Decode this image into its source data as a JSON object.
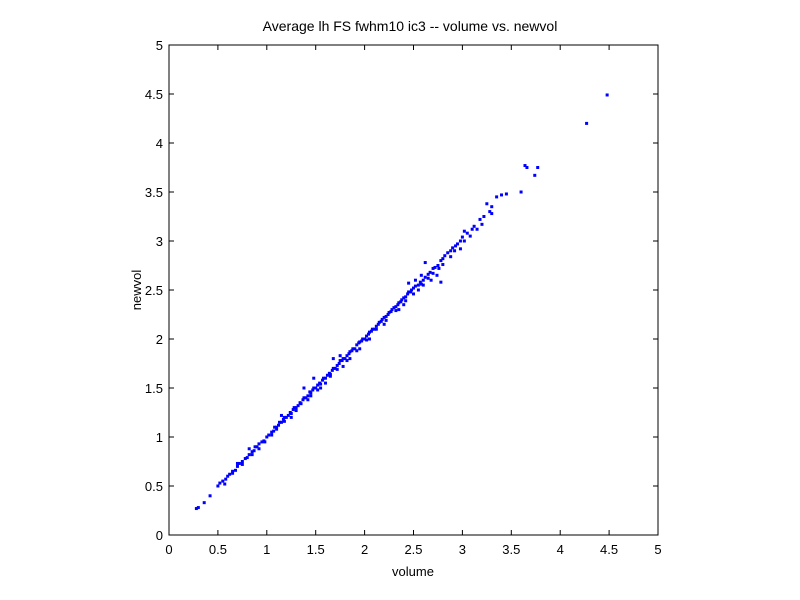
{
  "chart_data": {
    "type": "scatter",
    "title": "Average lh FS fwhm10 ic3 -- volume vs. newvol",
    "xlabel": "volume",
    "ylabel": "newvol",
    "xlim": [
      0,
      5
    ],
    "ylim": [
      0,
      5
    ],
    "xticks": [
      "0",
      "0.5",
      "1",
      "1.5",
      "2",
      "2.5",
      "3",
      "3.5",
      "4",
      "4.5",
      "5"
    ],
    "yticks": [
      "0",
      "0.5",
      "1",
      "1.5",
      "2",
      "2.5",
      "3",
      "3.5",
      "4",
      "4.5",
      "5"
    ],
    "grid": false,
    "marker_color": "#0000ff",
    "points": [
      [
        0.28,
        0.27
      ],
      [
        0.3,
        0.28
      ],
      [
        0.36,
        0.33
      ],
      [
        0.42,
        0.4
      ],
      [
        0.5,
        0.5
      ],
      [
        0.52,
        0.53
      ],
      [
        0.55,
        0.55
      ],
      [
        0.57,
        0.52
      ],
      [
        0.6,
        0.6
      ],
      [
        0.62,
        0.62
      ],
      [
        0.65,
        0.65
      ],
      [
        0.68,
        0.66
      ],
      [
        0.7,
        0.7
      ],
      [
        0.72,
        0.73
      ],
      [
        0.75,
        0.75
      ],
      [
        0.78,
        0.78
      ],
      [
        0.8,
        0.79
      ],
      [
        0.82,
        0.82
      ],
      [
        0.85,
        0.85
      ],
      [
        0.87,
        0.86
      ],
      [
        0.88,
        0.9
      ],
      [
        0.9,
        0.9
      ],
      [
        0.92,
        0.93
      ],
      [
        0.95,
        0.95
      ],
      [
        0.97,
        0.96
      ],
      [
        1.0,
        1.0
      ],
      [
        1.02,
        1.02
      ],
      [
        1.05,
        1.05
      ],
      [
        1.07,
        1.06
      ],
      [
        1.08,
        1.1
      ],
      [
        1.1,
        1.1
      ],
      [
        1.12,
        1.12
      ],
      [
        1.13,
        1.15
      ],
      [
        1.15,
        1.15
      ],
      [
        1.17,
        1.18
      ],
      [
        1.18,
        1.2
      ],
      [
        1.2,
        1.2
      ],
      [
        1.22,
        1.22
      ],
      [
        1.24,
        1.25
      ],
      [
        1.25,
        1.24
      ],
      [
        1.27,
        1.28
      ],
      [
        1.28,
        1.3
      ],
      [
        1.3,
        1.3
      ],
      [
        1.32,
        1.32
      ],
      [
        1.34,
        1.35
      ],
      [
        1.35,
        1.34
      ],
      [
        1.37,
        1.38
      ],
      [
        1.38,
        1.4
      ],
      [
        1.4,
        1.4
      ],
      [
        1.42,
        1.42
      ],
      [
        1.44,
        1.46
      ],
      [
        1.45,
        1.45
      ],
      [
        1.47,
        1.48
      ],
      [
        1.48,
        1.5
      ],
      [
        1.5,
        1.5
      ],
      [
        1.52,
        1.53
      ],
      [
        1.54,
        1.55
      ],
      [
        1.55,
        1.54
      ],
      [
        1.57,
        1.58
      ],
      [
        1.58,
        1.6
      ],
      [
        1.6,
        1.6
      ],
      [
        1.62,
        1.63
      ],
      [
        1.64,
        1.65
      ],
      [
        1.65,
        1.64
      ],
      [
        1.67,
        1.68
      ],
      [
        1.68,
        1.7
      ],
      [
        1.7,
        1.7
      ],
      [
        1.72,
        1.73
      ],
      [
        1.74,
        1.75
      ],
      [
        1.75,
        1.78
      ],
      [
        1.77,
        1.78
      ],
      [
        1.78,
        1.8
      ],
      [
        1.8,
        1.8
      ],
      [
        1.82,
        1.83
      ],
      [
        1.84,
        1.85
      ],
      [
        1.85,
        1.87
      ],
      [
        1.87,
        1.88
      ],
      [
        1.88,
        1.9
      ],
      [
        1.9,
        1.9
      ],
      [
        1.92,
        1.94
      ],
      [
        1.94,
        1.96
      ],
      [
        1.95,
        1.97
      ],
      [
        1.97,
        1.98
      ],
      [
        1.98,
        2.0
      ],
      [
        2.0,
        2.0
      ],
      [
        2.02,
        2.03
      ],
      [
        2.04,
        2.05
      ],
      [
        2.05,
        2.07
      ],
      [
        2.07,
        2.08
      ],
      [
        2.08,
        2.1
      ],
      [
        2.1,
        2.1
      ],
      [
        2.12,
        2.13
      ],
      [
        2.14,
        2.15
      ],
      [
        2.15,
        2.17
      ],
      [
        2.17,
        2.18
      ],
      [
        2.18,
        2.2
      ],
      [
        2.2,
        2.22
      ],
      [
        2.22,
        2.23
      ],
      [
        2.24,
        2.25
      ],
      [
        2.25,
        2.27
      ],
      [
        2.27,
        2.28
      ],
      [
        2.28,
        2.3
      ],
      [
        2.3,
        2.32
      ],
      [
        2.32,
        2.33
      ],
      [
        2.34,
        2.35
      ],
      [
        2.35,
        2.37
      ],
      [
        2.37,
        2.38
      ],
      [
        2.38,
        2.4
      ],
      [
        2.4,
        2.42
      ],
      [
        2.42,
        2.43
      ],
      [
        2.44,
        2.46
      ],
      [
        2.45,
        2.48
      ],
      [
        2.47,
        2.48
      ],
      [
        2.48,
        2.5
      ],
      [
        2.5,
        2.52
      ],
      [
        2.52,
        2.54
      ],
      [
        2.55,
        2.55
      ],
      [
        2.57,
        2.58
      ],
      [
        2.6,
        2.6
      ],
      [
        2.62,
        2.63
      ],
      [
        2.65,
        2.66
      ],
      [
        2.67,
        2.68
      ],
      [
        2.7,
        2.72
      ],
      [
        2.72,
        2.73
      ],
      [
        2.75,
        2.75
      ],
      [
        2.78,
        2.8
      ],
      [
        2.8,
        2.82
      ],
      [
        2.82,
        2.85
      ],
      [
        2.85,
        2.88
      ],
      [
        2.88,
        2.9
      ],
      [
        2.9,
        2.93
      ],
      [
        2.93,
        2.95
      ],
      [
        2.95,
        2.97
      ],
      [
        2.98,
        3.0
      ],
      [
        3.0,
        3.04
      ],
      [
        3.05,
        3.08
      ],
      [
        3.1,
        3.12
      ],
      [
        3.12,
        3.15
      ],
      [
        3.18,
        3.22
      ],
      [
        3.22,
        3.25
      ],
      [
        3.25,
        3.38
      ],
      [
        3.28,
        3.3
      ],
      [
        3.3,
        3.35
      ],
      [
        3.35,
        3.45
      ],
      [
        3.4,
        3.47
      ],
      [
        3.45,
        3.48
      ],
      [
        3.6,
        3.5
      ],
      [
        3.64,
        3.77
      ],
      [
        3.66,
        3.75
      ],
      [
        3.74,
        3.67
      ],
      [
        3.77,
        3.75
      ],
      [
        4.27,
        4.2
      ],
      [
        4.48,
        4.49
      ],
      [
        2.62,
        2.78
      ],
      [
        1.75,
        1.83
      ],
      [
        1.68,
        1.8
      ],
      [
        2.45,
        2.57
      ],
      [
        2.58,
        2.65
      ],
      [
        2.52,
        2.6
      ],
      [
        1.38,
        1.5
      ],
      [
        1.48,
        1.6
      ],
      [
        1.15,
        1.22
      ],
      [
        0.82,
        0.88
      ],
      [
        0.7,
        0.73
      ],
      [
        1.6,
        1.55
      ],
      [
        1.85,
        1.8
      ],
      [
        2.35,
        2.3
      ],
      [
        2.6,
        2.55
      ],
      [
        2.68,
        2.6
      ],
      [
        2.74,
        2.65
      ],
      [
        2.78,
        2.58
      ],
      [
        2.76,
        2.72
      ],
      [
        2.4,
        2.35
      ],
      [
        2.2,
        2.15
      ],
      [
        2.05,
        2.0
      ],
      [
        1.95,
        1.9
      ],
      [
        1.78,
        1.72
      ],
      [
        1.55,
        1.5
      ],
      [
        1.42,
        1.38
      ],
      [
        1.25,
        1.2
      ],
      [
        1.05,
        1.02
      ],
      [
        0.92,
        0.88
      ],
      [
        0.58,
        0.57
      ],
      [
        0.65,
        0.63
      ],
      [
        0.75,
        0.72
      ],
      [
        0.85,
        0.82
      ],
      [
        0.98,
        0.95
      ],
      [
        1.1,
        1.08
      ],
      [
        1.18,
        1.16
      ],
      [
        1.3,
        1.27
      ],
      [
        1.45,
        1.42
      ],
      [
        1.52,
        1.48
      ],
      [
        1.65,
        1.62
      ],
      [
        1.72,
        1.69
      ],
      [
        1.82,
        1.78
      ],
      [
        1.92,
        1.88
      ],
      [
        2.02,
        1.99
      ],
      [
        2.12,
        2.1
      ],
      [
        2.22,
        2.19
      ],
      [
        2.32,
        2.29
      ],
      [
        2.42,
        2.39
      ],
      [
        2.5,
        2.46
      ],
      [
        2.55,
        2.5
      ],
      [
        2.58,
        2.56
      ],
      [
        2.65,
        2.62
      ],
      [
        2.7,
        2.67
      ],
      [
        2.8,
        2.76
      ],
      [
        2.92,
        2.9
      ],
      [
        3.02,
        3.0
      ],
      [
        3.15,
        3.12
      ],
      [
        3.2,
        3.17
      ],
      [
        3.3,
        3.28
      ],
      [
        3.02,
        3.1
      ],
      [
        2.98,
        2.92
      ],
      [
        2.88,
        2.84
      ],
      [
        3.08,
        3.05
      ]
    ]
  }
}
